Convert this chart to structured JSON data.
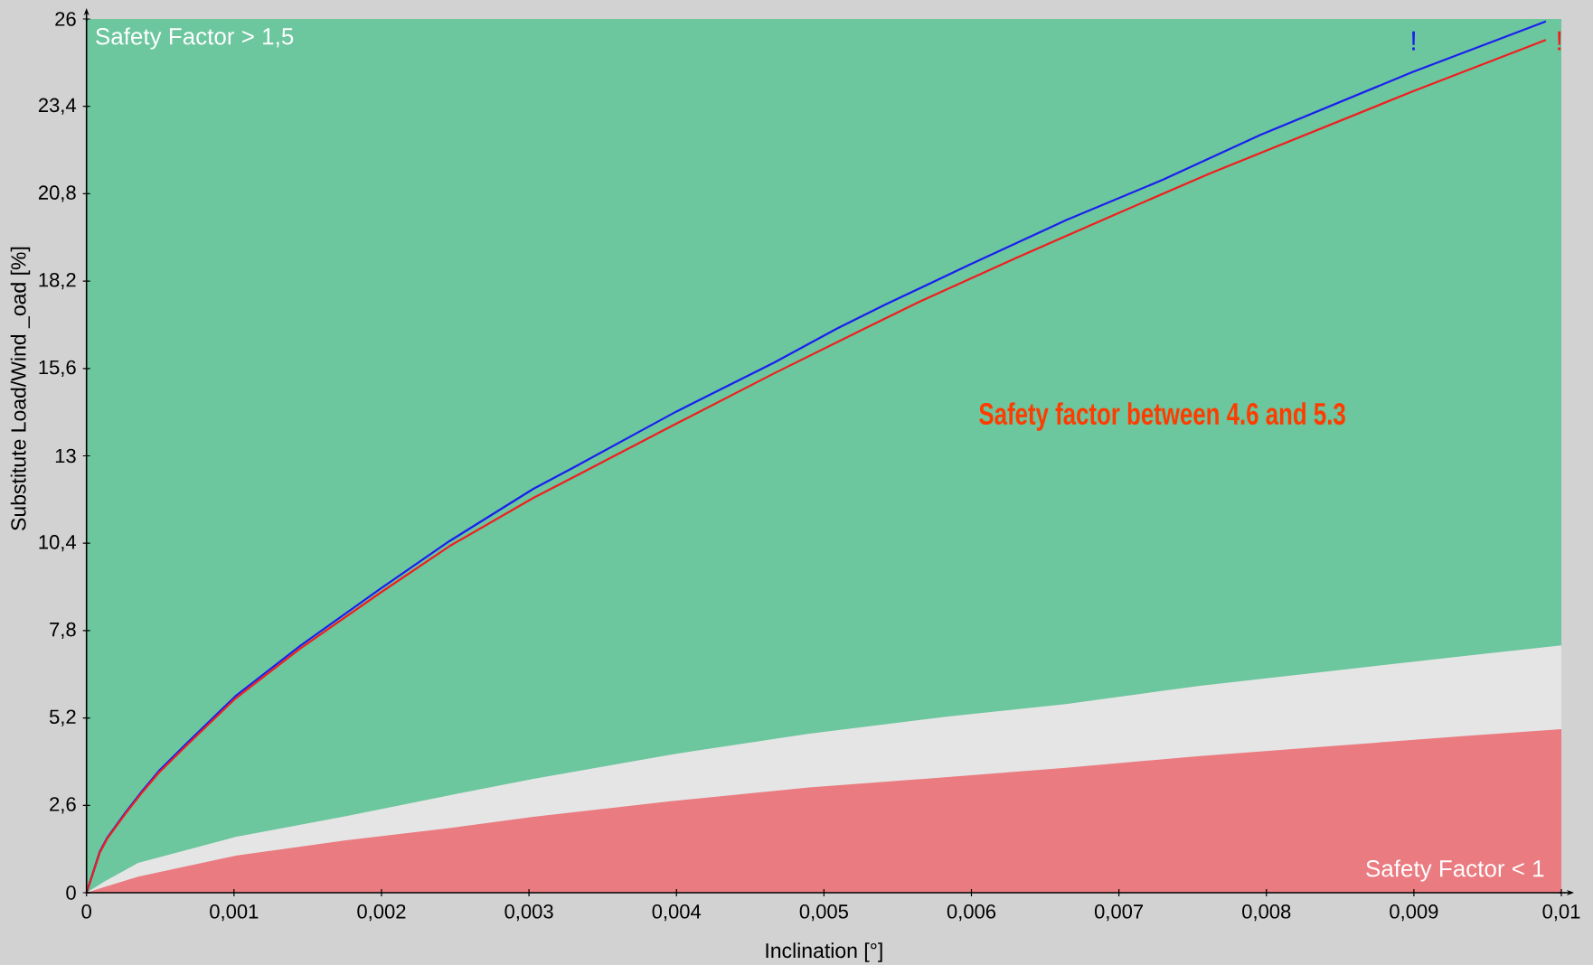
{
  "chart_data": {
    "type": "line",
    "xlabel": "Inclination [°]",
    "ylabel": "Substitute Load/Wind _oad [%]",
    "xlim": [
      0,
      0.01
    ],
    "ylim": [
      0,
      26
    ],
    "xticks": [
      0,
      {
        "value": 0.001,
        "label": "0,001"
      },
      {
        "value": 0.002,
        "label": "0,002"
      },
      {
        "value": 0.003,
        "label": "0,003"
      },
      {
        "value": 0.004,
        "label": "0,004"
      },
      {
        "value": 0.005,
        "label": "0,005"
      },
      {
        "value": 0.006,
        "label": "0,006"
      },
      {
        "value": 0.007,
        "label": "0,007"
      },
      {
        "value": 0.008,
        "label": "0,008"
      },
      {
        "value": 0.009,
        "label": "0,009"
      },
      {
        "value": 0.01,
        "label": "0,01"
      }
    ],
    "yticks": [
      0,
      {
        "value": 2.6,
        "label": "2,6"
      },
      {
        "value": 5.2,
        "label": "5,2"
      },
      {
        "value": 7.8,
        "label": "7,8"
      },
      {
        "value": 10.4,
        "label": "10,4"
      },
      13,
      {
        "value": 15.6,
        "label": "15,6"
      },
      {
        "value": 18.2,
        "label": "18,2"
      },
      {
        "value": 20.8,
        "label": "20,8"
      },
      {
        "value": 23.4,
        "label": "23,4"
      },
      26
    ],
    "annotations": [
      "Safety factor between 4.6 and 5.3",
      "!",
      "!"
    ],
    "bands": [
      {
        "axis": "y",
        "from": 0,
        "to": 26,
        "label": "Safety Factor > 1,5",
        "color": "#6cc69e"
      }
    ],
    "series": [
      {
        "type": "area",
        "color": "#e5e5e5",
        "x": [
          0,
          0.00012,
          0.00035,
          0.00101,
          0.00176,
          0.00246,
          0.00303,
          0.00396,
          0.0049,
          0.00584,
          0.00664,
          0.00755,
          0.00846,
          0.00937,
          0.01
        ],
        "values": [
          0,
          0.33,
          0.89,
          1.66,
          2.28,
          2.9,
          3.39,
          4.11,
          4.73,
          5.24,
          5.61,
          6.16,
          6.61,
          7.06,
          7.36
        ]
      },
      {
        "type": "area",
        "name": "Safety Factor < 1",
        "color": "#ea7b80",
        "x": [
          0,
          0.00012,
          0.00035,
          0.00101,
          0.00176,
          0.00246,
          0.00303,
          0.00396,
          0.0049,
          0.00584,
          0.00664,
          0.00755,
          0.00846,
          0.00937,
          0.01
        ],
        "values": [
          0,
          0.17,
          0.48,
          1.1,
          1.56,
          1.92,
          2.26,
          2.72,
          3.13,
          3.44,
          3.72,
          4.07,
          4.37,
          4.67,
          4.87
        ]
      },
      {
        "color": "#1a1ef0",
        "x": [
          0,
          9e-05,
          0.00014,
          0.00026,
          0.00038,
          0.00049,
          0.00068,
          0.00101,
          0.00145,
          0.00199,
          0.00246,
          0.00303,
          0.00333,
          0.004,
          0.00466,
          0.00509,
          0.00542,
          0.00598,
          0.00664,
          0.0073,
          0.00796,
          0.00899,
          0.00989
        ],
        "values": [
          0,
          1.22,
          1.63,
          2.36,
          3.04,
          3.62,
          4.45,
          5.85,
          7.35,
          9.04,
          10.46,
          12.02,
          12.72,
          14.32,
          15.77,
          16.79,
          17.51,
          18.67,
          20.01,
          21.22,
          22.55,
          24.42,
          25.92
        ]
      },
      {
        "color": "#f01e1e",
        "x": [
          0,
          9e-05,
          0.00014,
          0.00026,
          0.00038,
          0.00049,
          0.00068,
          0.00101,
          0.00145,
          0.00199,
          0.00246,
          0.00303,
          0.00333,
          0.004,
          0.00466,
          0.00529,
          0.00565,
          0.00631,
          0.00691,
          0.00762,
          0.00899,
          0.00989
        ],
        "values": [
          0,
          1.2,
          1.61,
          2.33,
          3.0,
          3.57,
          4.39,
          5.78,
          7.27,
          8.92,
          10.31,
          11.75,
          12.43,
          13.96,
          15.45,
          16.82,
          17.59,
          18.9,
          20.06,
          21.41,
          23.84,
          25.37
        ]
      }
    ]
  }
}
